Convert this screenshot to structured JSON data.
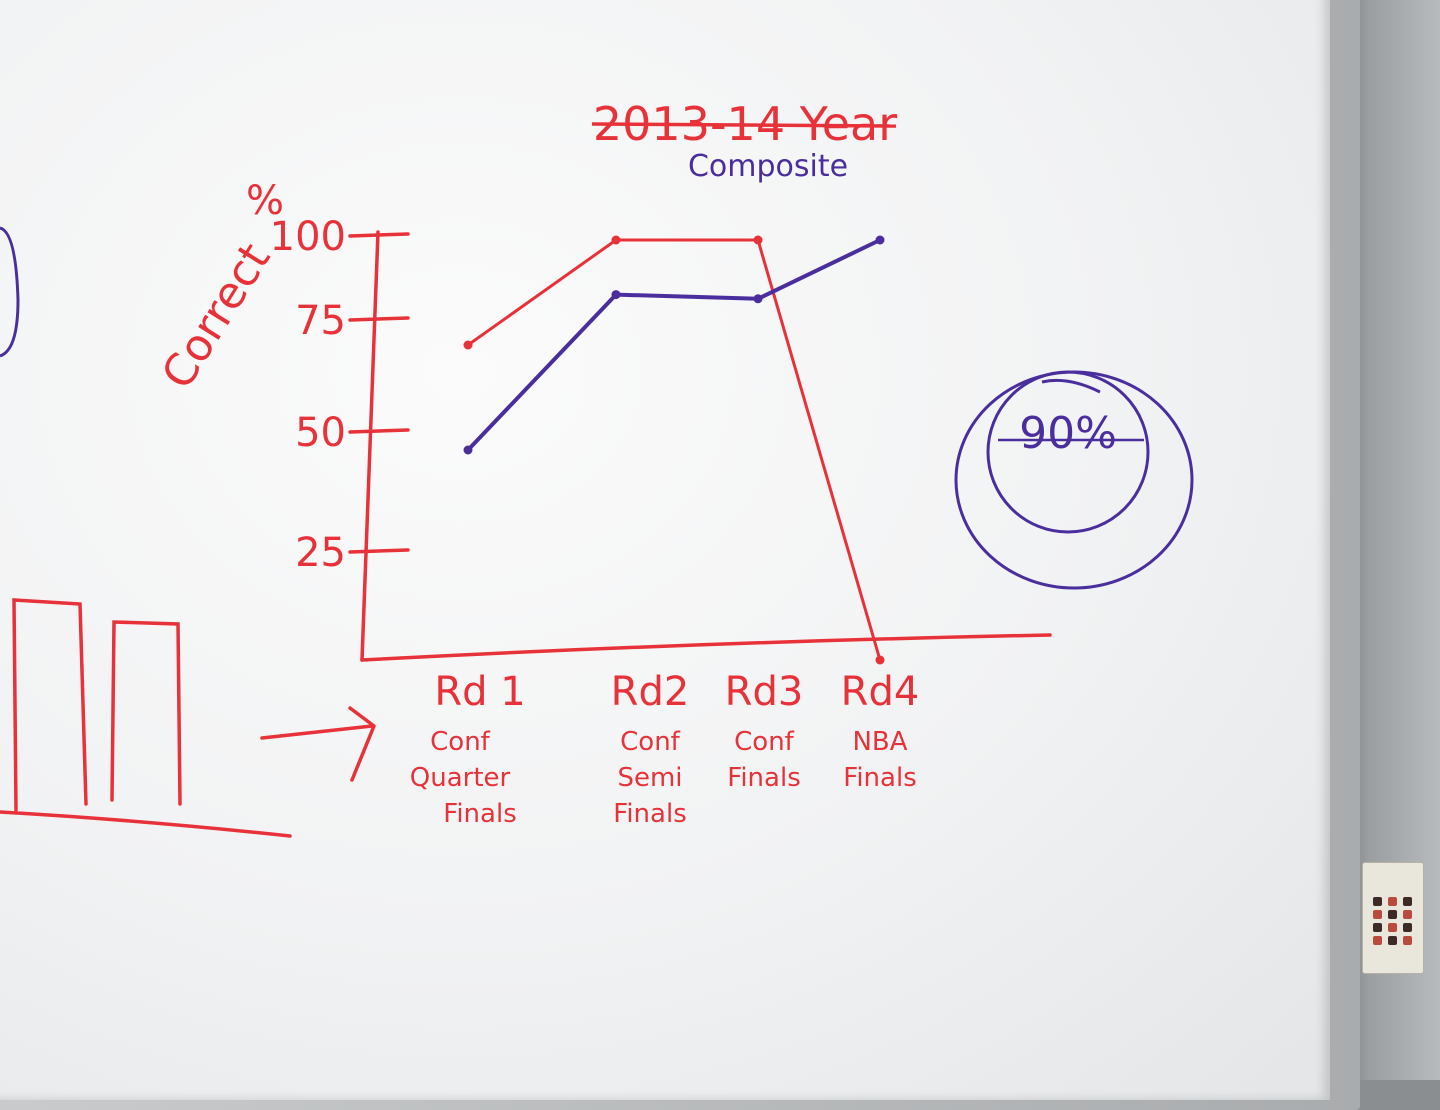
{
  "colors": {
    "red": "#e8323a",
    "blue": "#4b2e9e"
  },
  "chart_data": {
    "type": "line",
    "title": "2013-14 Year",
    "title_struck_through": true,
    "subtitle": "Composite",
    "ylabel": "Correct",
    "ylabel_unit": "%",
    "y_ticks": [
      "100",
      "75",
      "50",
      "25"
    ],
    "ylim": [
      0,
      100
    ],
    "categories": [
      {
        "round": "Rd 1",
        "name": [
          "Conf",
          "Quarter",
          "Finals"
        ]
      },
      {
        "round": "Rd2",
        "name": [
          "Conf",
          "Semi",
          "Finals"
        ]
      },
      {
        "round": "Rd3",
        "name": [
          "Conf",
          "Finals"
        ]
      },
      {
        "round": "Rd4",
        "name": [
          "NBA",
          "Finals"
        ]
      }
    ],
    "series": [
      {
        "color": "#e8323a",
        "values": [
          75,
          100,
          100,
          0
        ]
      },
      {
        "color": "#4b2e9e",
        "values": [
          50,
          87,
          86,
          100
        ]
      }
    ],
    "annotation": "90%",
    "grid": false
  }
}
